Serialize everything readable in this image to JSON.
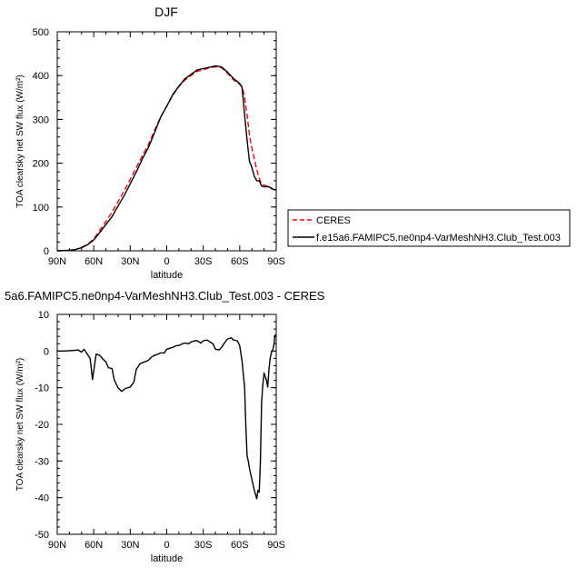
{
  "chart_data": [
    {
      "type": "line",
      "title": "DJF",
      "xlabel": "latitude",
      "ylabel": "TOA clearsky net SW flux (W/m²)",
      "xlim": [
        90,
        -90
      ],
      "ylim": [
        0,
        500
      ],
      "xticks": [
        90,
        60,
        30,
        0,
        -30,
        -60,
        -90
      ],
      "xticklabels": [
        "90N",
        "60N",
        "30N",
        "0",
        "30S",
        "60S",
        "90S"
      ],
      "yticks": [
        0,
        100,
        200,
        300,
        400,
        500
      ],
      "yticklabels": [
        "0",
        "100",
        "200",
        "300",
        "400",
        "500"
      ],
      "grid": false,
      "legend": "outside-right",
      "series": [
        {
          "name": "CERES",
          "color": "#ff0000",
          "dash": "dashed",
          "x": [
            90,
            80,
            75,
            70,
            65,
            60,
            55,
            50,
            45,
            40,
            35,
            30,
            25,
            20,
            15,
            10,
            5,
            0,
            -5,
            -10,
            -15,
            -20,
            -25,
            -30,
            -35,
            -40,
            -45,
            -50,
            -55,
            -60,
            -62,
            -64,
            -66,
            -68,
            -70,
            -72,
            -74,
            -76,
            -78,
            -80,
            -82,
            -84,
            -86,
            -88,
            -90
          ],
          "y": [
            0,
            1,
            3,
            8,
            15,
            27,
            47,
            67,
            88,
            112,
            137,
            163,
            190,
            217,
            243,
            275,
            305,
            330,
            355,
            375,
            390,
            400,
            410,
            413,
            418,
            420,
            418,
            405,
            390,
            380,
            375,
            350,
            310,
            265,
            235,
            210,
            185,
            165,
            152,
            150,
            148,
            146,
            142,
            140,
            137
          ]
        },
        {
          "name": "f.e15a6.FAMIPC5.ne0np4-VarMeshNH3.Club_Test.003",
          "color": "#000000",
          "dash": "solid",
          "x": [
            90,
            80,
            75,
            70,
            65,
            60,
            55,
            50,
            45,
            40,
            35,
            30,
            25,
            20,
            15,
            10,
            5,
            0,
            -5,
            -10,
            -15,
            -20,
            -25,
            -30,
            -35,
            -40,
            -45,
            -50,
            -55,
            -60,
            -62,
            -64,
            -66,
            -68,
            -70,
            -72,
            -74,
            -76,
            -78,
            -80,
            -82,
            -84,
            -86,
            -88,
            -90
          ],
          "y": [
            0,
            1,
            3,
            7,
            14,
            25,
            42,
            60,
            78,
            102,
            126,
            153,
            180,
            210,
            236,
            270,
            305,
            330,
            357,
            376,
            393,
            403,
            413,
            416,
            419,
            422,
            420,
            408,
            393,
            382,
            372,
            310,
            253,
            205,
            190,
            170,
            160,
            160,
            148,
            146,
            146,
            146,
            143,
            140,
            139
          ]
        }
      ]
    },
    {
      "type": "line",
      "title": "5a6.FAMIPC5.ne0np4-VarMeshNH3.Club_Test.003 - CERES",
      "xlabel": "latitude",
      "ylabel": "TOA clearsky net SW flux (W/m²)",
      "xlim": [
        90,
        -90
      ],
      "ylim": [
        -50,
        10
      ],
      "xticks": [
        90,
        60,
        30,
        0,
        -30,
        -60,
        -90
      ],
      "xticklabels": [
        "90N",
        "60N",
        "30N",
        "0",
        "30S",
        "60S",
        "90S"
      ],
      "yticks": [
        -50,
        -40,
        -30,
        -20,
        -10,
        0,
        10
      ],
      "yticklabels": [
        "-50",
        "-40",
        "-30",
        "-20",
        "-10",
        "0",
        "10"
      ],
      "grid": false,
      "series": [
        {
          "color": "#000000",
          "dash": "solid",
          "x": [
            90,
            85,
            80,
            75,
            73,
            70,
            68,
            66,
            63,
            61,
            58,
            55,
            53,
            50,
            48,
            45,
            43,
            40,
            37,
            34,
            30,
            27,
            25,
            22,
            20,
            17,
            15,
            12,
            10,
            7,
            5,
            2,
            0,
            -3,
            -5,
            -8,
            -10,
            -13,
            -15,
            -18,
            -20,
            -23,
            -25,
            -28,
            -30,
            -33,
            -35,
            -38,
            -40,
            -43,
            -45,
            -48,
            -50,
            -53,
            -55,
            -58,
            -60,
            -62,
            -64,
            -65,
            -66,
            -67,
            -68,
            -70,
            -72,
            -74,
            -75,
            -76,
            -77,
            -78,
            -79,
            -80,
            -81,
            -82,
            -83,
            -84,
            -85,
            -86,
            -87,
            -88,
            -89
          ],
          "y": [
            0,
            0,
            0.1,
            0.2,
            0.3,
            -0.3,
            0.5,
            -0.5,
            -2,
            -7.8,
            -0.8,
            -1.2,
            -2,
            -3,
            -4.5,
            -4.8,
            -8,
            -10,
            -11,
            -10.2,
            -9.8,
            -8.5,
            -5,
            -3.5,
            -3.2,
            -2.8,
            -2.5,
            -1.5,
            -1.2,
            -0.8,
            -0.5,
            -0.5,
            0.5,
            0.8,
            1.0,
            1.5,
            1.5,
            2.0,
            2.2,
            2.0,
            2.5,
            2.8,
            2.8,
            2.2,
            2.8,
            3.0,
            2.6,
            2.0,
            0.5,
            0.3,
            1.0,
            2.5,
            3.3,
            3.6,
            3.0,
            2.8,
            1.5,
            -3,
            -10,
            -20,
            -28.5,
            -30,
            -32,
            -35,
            -38,
            -40.3,
            -38,
            -38.5,
            -30,
            -14,
            -9,
            -6,
            -7,
            -8,
            -9.8,
            -5,
            -2,
            -0.5,
            0.2,
            1.5,
            4.5
          ]
        }
      ]
    }
  ]
}
